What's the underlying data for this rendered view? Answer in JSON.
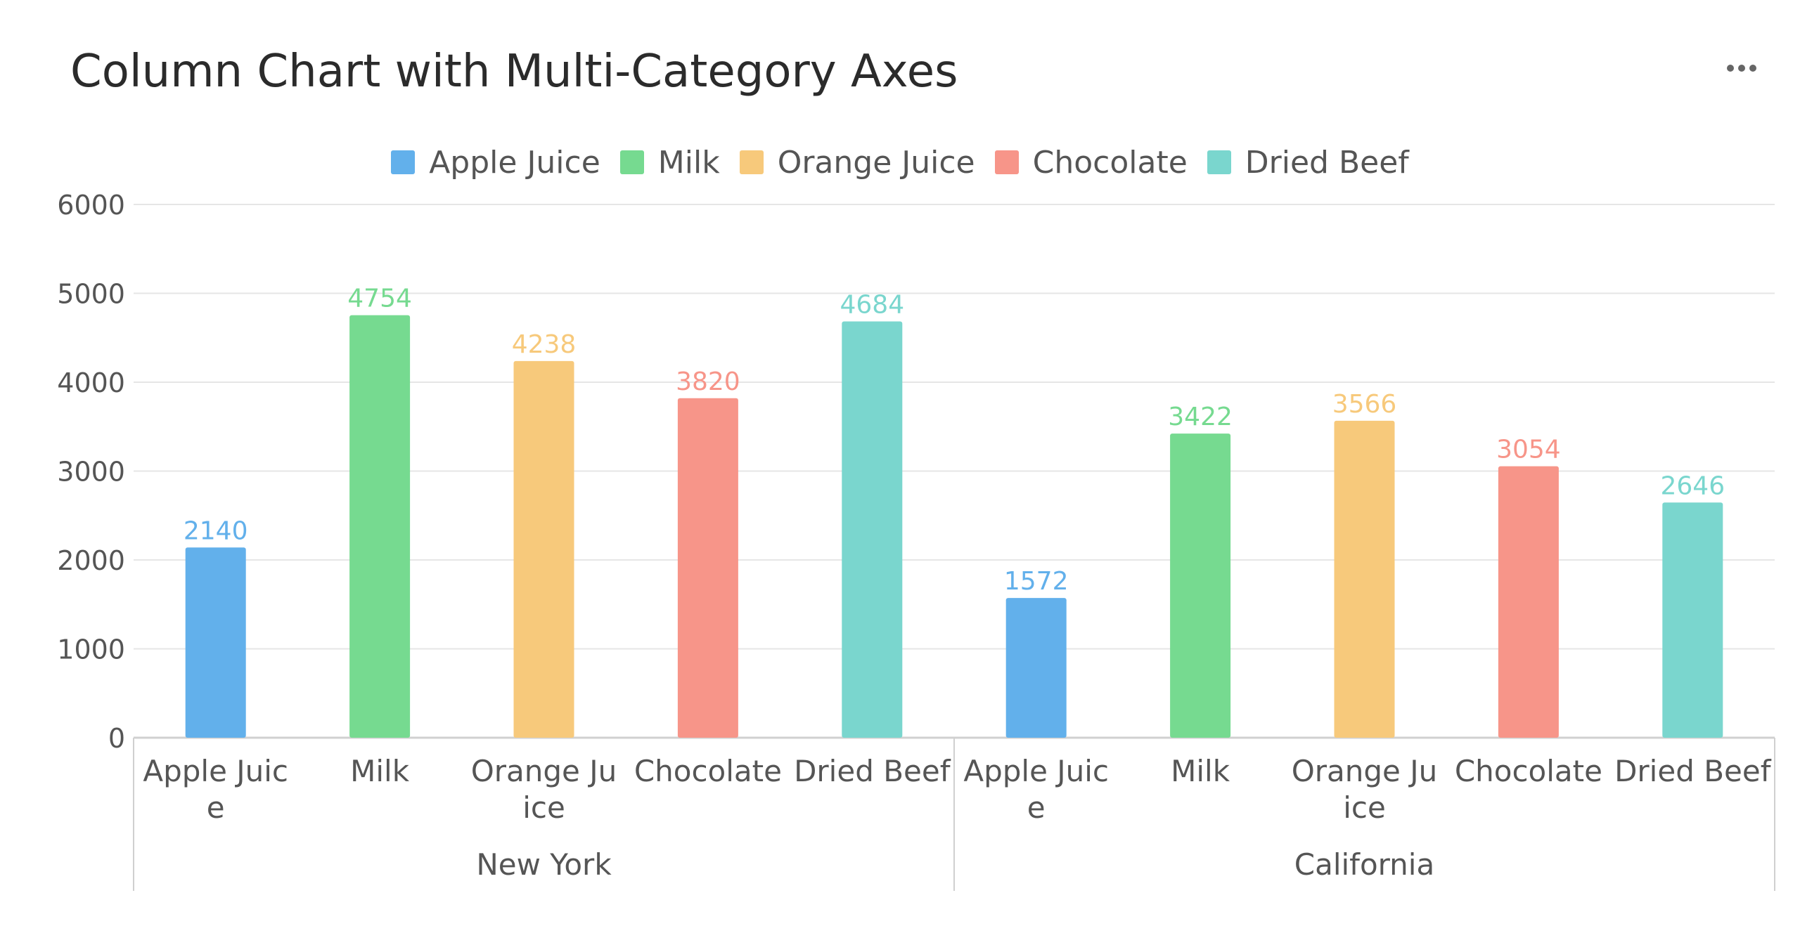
{
  "header": {
    "title": "Column Chart with Multi-Category Axes",
    "more_icon": "more-horizontal-icon"
  },
  "chart_data": {
    "type": "bar",
    "title": "Column Chart with Multi-Category Axes",
    "xlabel": "",
    "ylabel": "",
    "ylim": [
      0,
      6000
    ],
    "yticks": [
      0,
      1000,
      2000,
      3000,
      4000,
      5000,
      6000
    ],
    "grid": true,
    "legend_position": "top-center",
    "groups": [
      {
        "label": "New York",
        "items": [
          {
            "category": "Apple Juice",
            "tick_lines": [
              "Apple Juic",
              "e"
            ],
            "series": "Apple Juice",
            "value": 2140
          },
          {
            "category": "Milk",
            "tick_lines": [
              "Milk"
            ],
            "series": "Milk",
            "value": 4754
          },
          {
            "category": "Orange Juice",
            "tick_lines": [
              "Orange Ju",
              "ice"
            ],
            "series": "Orange Juice",
            "value": 4238
          },
          {
            "category": "Chocolate",
            "tick_lines": [
              "Chocolate"
            ],
            "series": "Chocolate",
            "value": 3820
          },
          {
            "category": "Dried Beef",
            "tick_lines": [
              "Dried Beef"
            ],
            "series": "Dried Beef",
            "value": 4684
          }
        ]
      },
      {
        "label": "California",
        "items": [
          {
            "category": "Apple Juice",
            "tick_lines": [
              "Apple Juic",
              "e"
            ],
            "series": "Apple Juice",
            "value": 1572
          },
          {
            "category": "Milk",
            "tick_lines": [
              "Milk"
            ],
            "series": "Milk",
            "value": 3422
          },
          {
            "category": "Orange Juice",
            "tick_lines": [
              "Orange Ju",
              "ice"
            ],
            "series": "Orange Juice",
            "value": 3566
          },
          {
            "category": "Chocolate",
            "tick_lines": [
              "Chocolate"
            ],
            "series": "Chocolate",
            "value": 3054
          },
          {
            "category": "Dried Beef",
            "tick_lines": [
              "Dried Beef"
            ],
            "series": "Dried Beef",
            "value": 2646
          }
        ]
      }
    ],
    "series": [
      {
        "name": "Apple Juice",
        "color": "#62b0eb"
      },
      {
        "name": "Milk",
        "color": "#76da90"
      },
      {
        "name": "Orange Juice",
        "color": "#f7c97b"
      },
      {
        "name": "Chocolate",
        "color": "#f79589"
      },
      {
        "name": "Dried Beef",
        "color": "#7ad6ce"
      }
    ]
  }
}
